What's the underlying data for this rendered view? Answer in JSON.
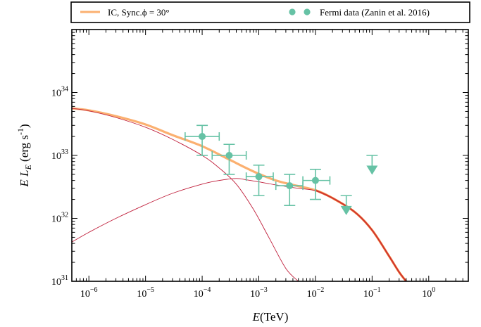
{
  "chart_data": {
    "type": "line",
    "xlabel": "E(TeV)",
    "ylabel": "E L_E (erg s^-1)",
    "x_scale": "log",
    "y_scale": "log",
    "xlim": [
      5e-07,
      5
    ],
    "ylim": [
      1e+31,
      1e+35
    ],
    "x_ticks": [
      {
        "value": 1e-06,
        "base": "10",
        "exp": "−6"
      },
      {
        "value": 1e-05,
        "base": "10",
        "exp": "−5"
      },
      {
        "value": 0.0001,
        "base": "10",
        "exp": "−4"
      },
      {
        "value": 0.001,
        "base": "10",
        "exp": "−3"
      },
      {
        "value": 0.01,
        "base": "10",
        "exp": "−2"
      },
      {
        "value": 0.1,
        "base": "10",
        "exp": "−1"
      },
      {
        "value": 1,
        "base": "10",
        "exp": "0"
      }
    ],
    "y_ticks": [
      {
        "value": 1e+31,
        "base": "10",
        "exp": "31"
      },
      {
        "value": 1e+32,
        "base": "10",
        "exp": "32"
      },
      {
        "value": 1e+33,
        "base": "10",
        "exp": "33"
      },
      {
        "value": 1e+34,
        "base": "10",
        "exp": "34"
      }
    ],
    "grid": false,
    "legend_position": "top (outside, above plot)",
    "colors": {
      "total": "#fbb070",
      "total_tail": "#e65a28",
      "component": "#c0203c",
      "data": "#66c2a5"
    },
    "series": [
      {
        "name": "IC, Sync.ϕ = 30°",
        "kind": "model-total",
        "x": [
          5e-07,
          1e-06,
          3e-06,
          1e-05,
          3e-05,
          0.0001,
          0.0003,
          0.0006,
          0.001,
          0.002,
          0.004,
          0.01,
          0.02,
          0.05,
          0.1,
          0.2,
          0.3,
          0.4
        ],
        "y": [
          5.6e+33,
          5.2e+33,
          4.2e+33,
          3.1e+33,
          2.1e+33,
          1.4e+33,
          8.6e+32,
          6.3e+32,
          5.1e+32,
          4e+32,
          3.4e+32,
          2.8e+32,
          2.1e+32,
          1.25e+32,
          6.5e+31,
          2.5e+31,
          1.4e+31,
          1e+31
        ]
      },
      {
        "name": "",
        "kind": "component-synchrotron",
        "x": [
          5e-07,
          1e-06,
          3e-06,
          1e-05,
          3e-05,
          0.0001,
          0.0002,
          0.0004,
          0.0008,
          0.0015,
          0.003,
          0.005
        ],
        "y": [
          5.6e+33,
          5.1e+33,
          4e+33,
          2.8e+33,
          1.8e+33,
          1e+33,
          6.3e+32,
          3.5e+32,
          1.4e+32,
          5e+31,
          1.6e+31,
          1e+31
        ]
      },
      {
        "name": "",
        "kind": "component-ic",
        "x": [
          5e-07,
          1e-06,
          3e-06,
          1e-05,
          3e-05,
          0.0001,
          0.0002,
          0.0004,
          0.0006,
          0.001,
          0.002,
          0.005,
          0.01,
          0.02,
          0.05,
          0.1,
          0.2,
          0.3,
          0.4
        ],
        "y": [
          4.2e+31,
          6e+31,
          1e+32,
          1.65e+32,
          2.5e+32,
          3.5e+32,
          4e+32,
          4.3e+32,
          4.1e+32,
          3.8e+32,
          3.4e+32,
          3e+32,
          2.75e+32,
          2.1e+32,
          1.25e+32,
          6.5e+31,
          2.5e+31,
          1.4e+31,
          1e+31
        ]
      },
      {
        "name": "Fermi data (Zanin et al. 2016)",
        "kind": "data-points",
        "points": [
          {
            "x": 0.0001,
            "y": 2e+33,
            "xlo": 5e-05,
            "xhi": 0.0002,
            "ylo": 1e+33,
            "yhi": 3e+33
          },
          {
            "x": 0.0003,
            "y": 1e+33,
            "xlo": 0.00015,
            "xhi": 0.0006,
            "ylo": 5e+32,
            "yhi": 1.5e+33
          },
          {
            "x": 0.001,
            "y": 4.6e+32,
            "xlo": 0.0006,
            "xhi": 0.0018,
            "ylo": 2.3e+32,
            "yhi": 7e+32
          },
          {
            "x": 0.0035,
            "y": 3.3e+32,
            "xlo": 0.002,
            "xhi": 0.006,
            "ylo": 1.6e+32,
            "yhi": 5e+32
          },
          {
            "x": 0.01,
            "y": 4e+32,
            "xlo": 0.006,
            "xhi": 0.018,
            "ylo": 2e+32,
            "yhi": 6e+32
          }
        ],
        "upper_limits": [
          {
            "x": 0.035,
            "y": 2.3e+32,
            "marker_y": 1.35e+32
          },
          {
            "x": 0.1,
            "y": 1e+33,
            "marker_y": 5.9e+32
          }
        ]
      }
    ]
  },
  "legend": {
    "line_label": "IC, Sync.ϕ = 30°",
    "data_label": "Fermi data (Zanin et al. 2016)"
  }
}
